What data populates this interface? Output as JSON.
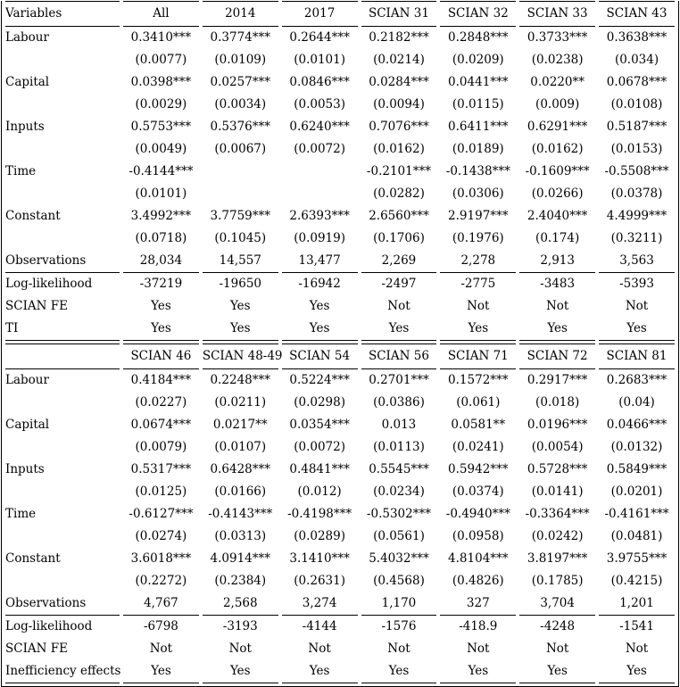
{
  "table": {
    "panels": [
      {
        "header": [
          "Variables",
          "All",
          "2014",
          "2017",
          "SCIAN 31",
          "SCIAN 32",
          "SCIAN 33",
          "SCIAN 43"
        ],
        "rows": [
          {
            "label": "Labour",
            "cells": [
              "0.3410***",
              "0.3774***",
              "0.2644***",
              "0.2182***",
              "0.2848***",
              "0.3733***",
              "0.3638***"
            ]
          },
          {
            "label": "",
            "cells": [
              "(0.0077)",
              "(0.0109)",
              "(0.0101)",
              "(0.0214)",
              "(0.0209)",
              "(0.0238)",
              "(0.034)"
            ]
          },
          {
            "label": "Capital",
            "cells": [
              "0.0398***",
              "0.0257***",
              "0.0846***",
              "0.0284***",
              "0.0441***",
              "0.0220**",
              "0.0678***"
            ]
          },
          {
            "label": "",
            "cells": [
              "(0.0029)",
              "(0.0034)",
              "(0.0053)",
              "(0.0094)",
              "(0.0115)",
              "(0.009)",
              "(0.0108)"
            ]
          },
          {
            "label": "Inputs",
            "cells": [
              "0.5753***",
              "0.5376***",
              "0.6240***",
              "0.7076***",
              "0.6411***",
              "0.6291***",
              "0.5187***"
            ]
          },
          {
            "label": "",
            "cells": [
              "(0.0049)",
              "(0.0067)",
              "(0.0072)",
              "(0.0162)",
              "(0.0189)",
              "(0.0162)",
              "(0.0153)"
            ]
          },
          {
            "label": "Time",
            "cells": [
              "-0.4144***",
              "",
              "",
              "-0.2101***",
              "-0.1438***",
              "-0.1609***",
              "-0.5508***"
            ]
          },
          {
            "label": "",
            "cells": [
              "(0.0101)",
              "",
              "",
              "(0.0282)",
              "(0.0306)",
              "(0.0266)",
              "(0.0378)"
            ]
          },
          {
            "label": "Constant",
            "cells": [
              "3.4992***",
              "3.7759***",
              "2.6393***",
              "2.6560***",
              "2.9197***",
              "2.4040***",
              "4.4999***"
            ]
          },
          {
            "label": "",
            "cells": [
              "(0.0718)",
              "(0.1045)",
              "(0.0919)",
              "(0.1706)",
              "(0.1976)",
              "(0.174)",
              "(0.3211)"
            ]
          },
          {
            "label": "Observations",
            "rule_below": true,
            "cells": [
              "28,034",
              "14,557",
              "13,477",
              "2,269",
              "2,278",
              "2,913",
              "3,563"
            ]
          },
          {
            "label": "Log-likelihood",
            "cells": [
              "-37219",
              "-19650",
              "-16942",
              "-2497",
              "-2775",
              "-3483",
              "-5393"
            ]
          },
          {
            "label": "SCIAN FE",
            "cells": [
              "Yes",
              "Yes",
              "Yes",
              "Not",
              "Not",
              "Not",
              "Not"
            ]
          },
          {
            "label": "TI",
            "rule_below": true,
            "cells": [
              "Yes",
              "Yes",
              "Yes",
              "Yes",
              "Yes",
              "Yes",
              "Yes"
            ]
          }
        ]
      },
      {
        "header": [
          "",
          "SCIAN 46",
          "SCIAN 48-49",
          "SCIAN 54",
          "SCIAN 56",
          "SCIAN 71",
          "SCIAN 72",
          "SCIAN 81"
        ],
        "rows": [
          {
            "label": "Labour",
            "cells": [
              "0.4184***",
              "0.2248***",
              "0.5224***",
              "0.2701***",
              "0.1572***",
              "0.2917***",
              "0.2683***"
            ]
          },
          {
            "label": "",
            "cells": [
              "(0.0227)",
              "(0.0211)",
              "(0.0298)",
              "(0.0386)",
              "(0.061)",
              "(0.018)",
              "(0.04)"
            ]
          },
          {
            "label": "Capital",
            "cells": [
              "0.0674***",
              "0.0217**",
              "0.0354***",
              "0.013",
              "0.0581**",
              "0.0196***",
              "0.0466***"
            ]
          },
          {
            "label": "",
            "cells": [
              "(0.0079)",
              "(0.0107)",
              "(0.0072)",
              "(0.0113)",
              "(0.0241)",
              "(0.0054)",
              "(0.0132)"
            ]
          },
          {
            "label": "Inputs",
            "cells": [
              "0.5317***",
              "0.6428***",
              "0.4841***",
              "0.5545***",
              "0.5942***",
              "0.5728***",
              "0.5849***"
            ]
          },
          {
            "label": "",
            "cells": [
              "(0.0125)",
              "(0.0166)",
              "(0.012)",
              "(0.0234)",
              "(0.0374)",
              "(0.0141)",
              "(0.0201)"
            ]
          },
          {
            "label": "Time",
            "cells": [
              "-0.6127***",
              "-0.4143***",
              "-0.4198***",
              "-0.5302***",
              "-0.4940***",
              "-0.3364***",
              "-0.4161***"
            ]
          },
          {
            "label": "",
            "cells": [
              "(0.0274)",
              "(0.0313)",
              "(0.0289)",
              "(0.0561)",
              "(0.0958)",
              "(0.0242)",
              "(0.0481)"
            ]
          },
          {
            "label": "Constant",
            "cells": [
              "3.6018***",
              "4.0914***",
              "3.1410***",
              "5.4032***",
              "4.8104***",
              "3.8197***",
              "3.9755***"
            ]
          },
          {
            "label": "",
            "cells": [
              "(0.2272)",
              "(0.2384)",
              "(0.2631)",
              "(0.4568)",
              "(0.4826)",
              "(0.1785)",
              "(0.4215)"
            ]
          },
          {
            "label": "Observations",
            "rule_below": true,
            "cells": [
              "4,767",
              "2,568",
              "3,274",
              "1,170",
              "327",
              "3,704",
              "1,201"
            ]
          },
          {
            "label": "Log-likelihood",
            "cells": [
              "-6798",
              "-3193",
              "-4144",
              "-1576",
              "-418.9",
              "-4248",
              "-1541"
            ]
          },
          {
            "label": "SCIAN FE",
            "cells": [
              "Not",
              "Not",
              "Not",
              "Not",
              "Not",
              "Not",
              "Not"
            ]
          },
          {
            "label": "Inefficiency effects",
            "rule_below": true,
            "cells": [
              "Yes",
              "Yes",
              "Yes",
              "Yes",
              "Yes",
              "Yes",
              "Yes"
            ]
          }
        ]
      }
    ]
  }
}
